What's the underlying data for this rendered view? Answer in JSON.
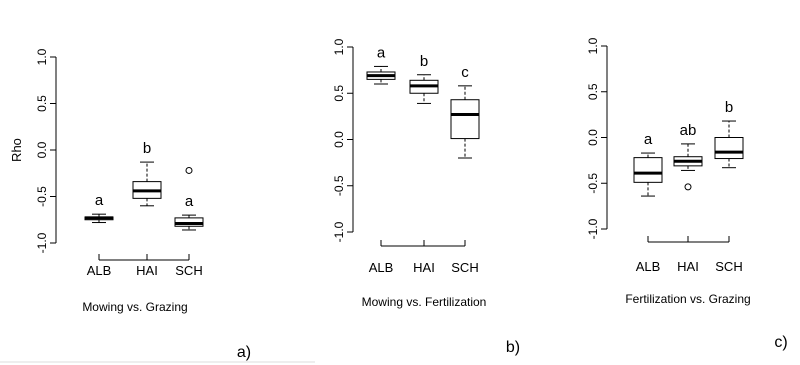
{
  "chart_data": [
    {
      "type": "box",
      "panel_label": "a)",
      "xlabel": "Mowing vs. Grazing",
      "ylabel": "Rho",
      "ylim": [
        -1.0,
        1.0
      ],
      "yticks": [
        "-1.0",
        "-0.5",
        "0.0",
        "0.5",
        "1.0"
      ],
      "categories": [
        "ALB",
        "HAI",
        "SCH"
      ],
      "boxes": [
        {
          "min": -0.78,
          "q1": -0.75,
          "median": -0.73,
          "q3": -0.72,
          "max": -0.69,
          "outliers": [],
          "letter": "a"
        },
        {
          "min": -0.6,
          "q1": -0.52,
          "median": -0.44,
          "q3": -0.34,
          "max": -0.13,
          "outliers": [],
          "letter": "b"
        },
        {
          "min": -0.86,
          "q1": -0.82,
          "median": -0.79,
          "q3": -0.73,
          "max": -0.7,
          "outliers": [
            -0.22
          ],
          "letter": "a"
        }
      ]
    },
    {
      "type": "box",
      "panel_label": "b)",
      "xlabel": "Mowing vs. Fertilization",
      "ylabel": "",
      "ylim": [
        -1.0,
        1.0
      ],
      "yticks": [
        "-1.0",
        "-0.5",
        "0.0",
        "0.5",
        "1.0"
      ],
      "categories": [
        "ALB",
        "HAI",
        "SCH"
      ],
      "boxes": [
        {
          "min": 0.6,
          "q1": 0.65,
          "median": 0.69,
          "q3": 0.73,
          "max": 0.79,
          "outliers": [],
          "letter": "a"
        },
        {
          "min": 0.39,
          "q1": 0.5,
          "median": 0.58,
          "q3": 0.64,
          "max": 0.7,
          "outliers": [],
          "letter": "b"
        },
        {
          "min": -0.2,
          "q1": 0.01,
          "median": 0.27,
          "q3": 0.43,
          "max": 0.58,
          "outliers": [],
          "letter": "c"
        }
      ]
    },
    {
      "type": "box",
      "panel_label": "c)",
      "xlabel": "Fertilization vs. Grazing",
      "ylabel": "",
      "ylim": [
        -1.0,
        1.0
      ],
      "yticks": [
        "-1.0",
        "-0.5",
        "0.0",
        "0.5",
        "1.0"
      ],
      "categories": [
        "ALB",
        "HAI",
        "SCH"
      ],
      "boxes": [
        {
          "min": -0.64,
          "q1": -0.49,
          "median": -0.39,
          "q3": -0.22,
          "max": -0.17,
          "outliers": [],
          "letter": "a"
        },
        {
          "min": -0.36,
          "q1": -0.31,
          "median": -0.26,
          "q3": -0.21,
          "max": -0.07,
          "outliers": [
            -0.54
          ],
          "letter": "ab"
        },
        {
          "min": -0.33,
          "q1": -0.23,
          "median": -0.16,
          "q3": 0.0,
          "max": 0.18,
          "outliers": [],
          "letter": "b"
        }
      ]
    }
  ]
}
